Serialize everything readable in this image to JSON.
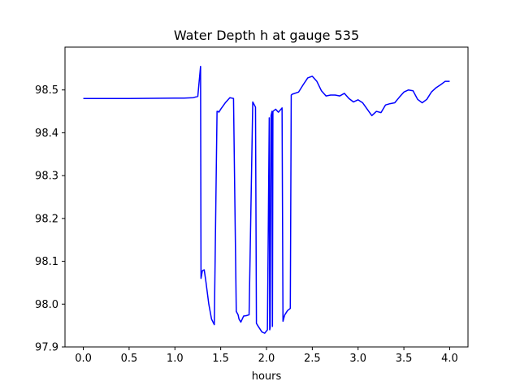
{
  "chart_data": {
    "type": "line",
    "title": "Water Depth h at gauge 535",
    "xlabel": "hours",
    "ylabel": "",
    "xlim": [
      -0.2,
      4.2
    ],
    "ylim": [
      97.9,
      98.6
    ],
    "xticks": [
      0.0,
      0.5,
      1.0,
      1.5,
      2.0,
      2.5,
      3.0,
      3.5,
      4.0
    ],
    "xtick_labels": [
      "0.0",
      "0.5",
      "1.0",
      "1.5",
      "2.0",
      "2.5",
      "3.0",
      "3.5",
      "4.0"
    ],
    "yticks": [
      97.9,
      98.0,
      98.1,
      98.2,
      98.3,
      98.4,
      98.5
    ],
    "ytick_labels": [
      "97.9",
      "98.0",
      "98.1",
      "98.2",
      "98.3",
      "98.4",
      "98.5"
    ],
    "grid": false,
    "colors": {
      "line": "#0000ff",
      "axes": "#000000",
      "background": "#ffffff"
    },
    "series": [
      {
        "x": [
          0.0,
          0.5,
          1.0,
          1.1,
          1.2,
          1.25,
          1.28,
          1.285,
          1.3,
          1.32,
          1.34,
          1.37,
          1.4,
          1.43,
          1.46,
          1.47,
          1.48,
          1.5,
          1.55,
          1.6,
          1.64,
          1.67,
          1.69,
          1.7,
          1.72,
          1.75,
          1.78,
          1.81,
          1.85,
          1.86,
          1.88,
          1.89,
          1.91,
          1.95,
          1.98,
          2.01,
          2.03,
          2.035,
          2.04,
          2.05,
          2.06,
          2.065,
          2.07,
          2.1,
          2.13,
          2.17,
          2.18,
          2.19,
          2.2,
          2.23,
          2.26,
          2.27,
          2.28,
          2.35,
          2.4,
          2.45,
          2.5,
          2.55,
          2.6,
          2.65,
          2.7,
          2.75,
          2.8,
          2.85,
          2.9,
          2.95,
          3.0,
          3.05,
          3.1,
          3.15,
          3.2,
          3.25,
          3.3,
          3.35,
          3.4,
          3.45,
          3.5,
          3.55,
          3.6,
          3.65,
          3.7,
          3.75,
          3.8,
          3.85,
          3.9,
          3.95,
          4.0
        ],
        "y": [
          98.48,
          98.48,
          98.481,
          98.481,
          98.482,
          98.485,
          98.555,
          98.06,
          98.078,
          98.08,
          98.05,
          98.0,
          97.965,
          97.952,
          98.45,
          98.45,
          98.448,
          98.455,
          98.47,
          98.482,
          98.48,
          97.983,
          97.975,
          97.965,
          97.958,
          97.972,
          97.973,
          97.975,
          98.472,
          98.468,
          98.46,
          97.955,
          97.948,
          97.935,
          97.932,
          97.94,
          98.435,
          97.94,
          97.945,
          98.44,
          98.45,
          97.948,
          98.45,
          98.455,
          98.448,
          98.458,
          97.96,
          97.968,
          97.975,
          97.985,
          97.99,
          98.488,
          98.49,
          98.495,
          98.512,
          98.528,
          98.532,
          98.52,
          98.498,
          98.486,
          98.488,
          98.488,
          98.486,
          98.492,
          98.48,
          98.472,
          98.477,
          98.47,
          98.455,
          98.44,
          98.45,
          98.447,
          98.465,
          98.468,
          98.47,
          98.483,
          98.495,
          98.5,
          98.498,
          98.478,
          98.47,
          98.478,
          98.495,
          98.505,
          98.512,
          98.52,
          98.52
        ]
      }
    ]
  }
}
